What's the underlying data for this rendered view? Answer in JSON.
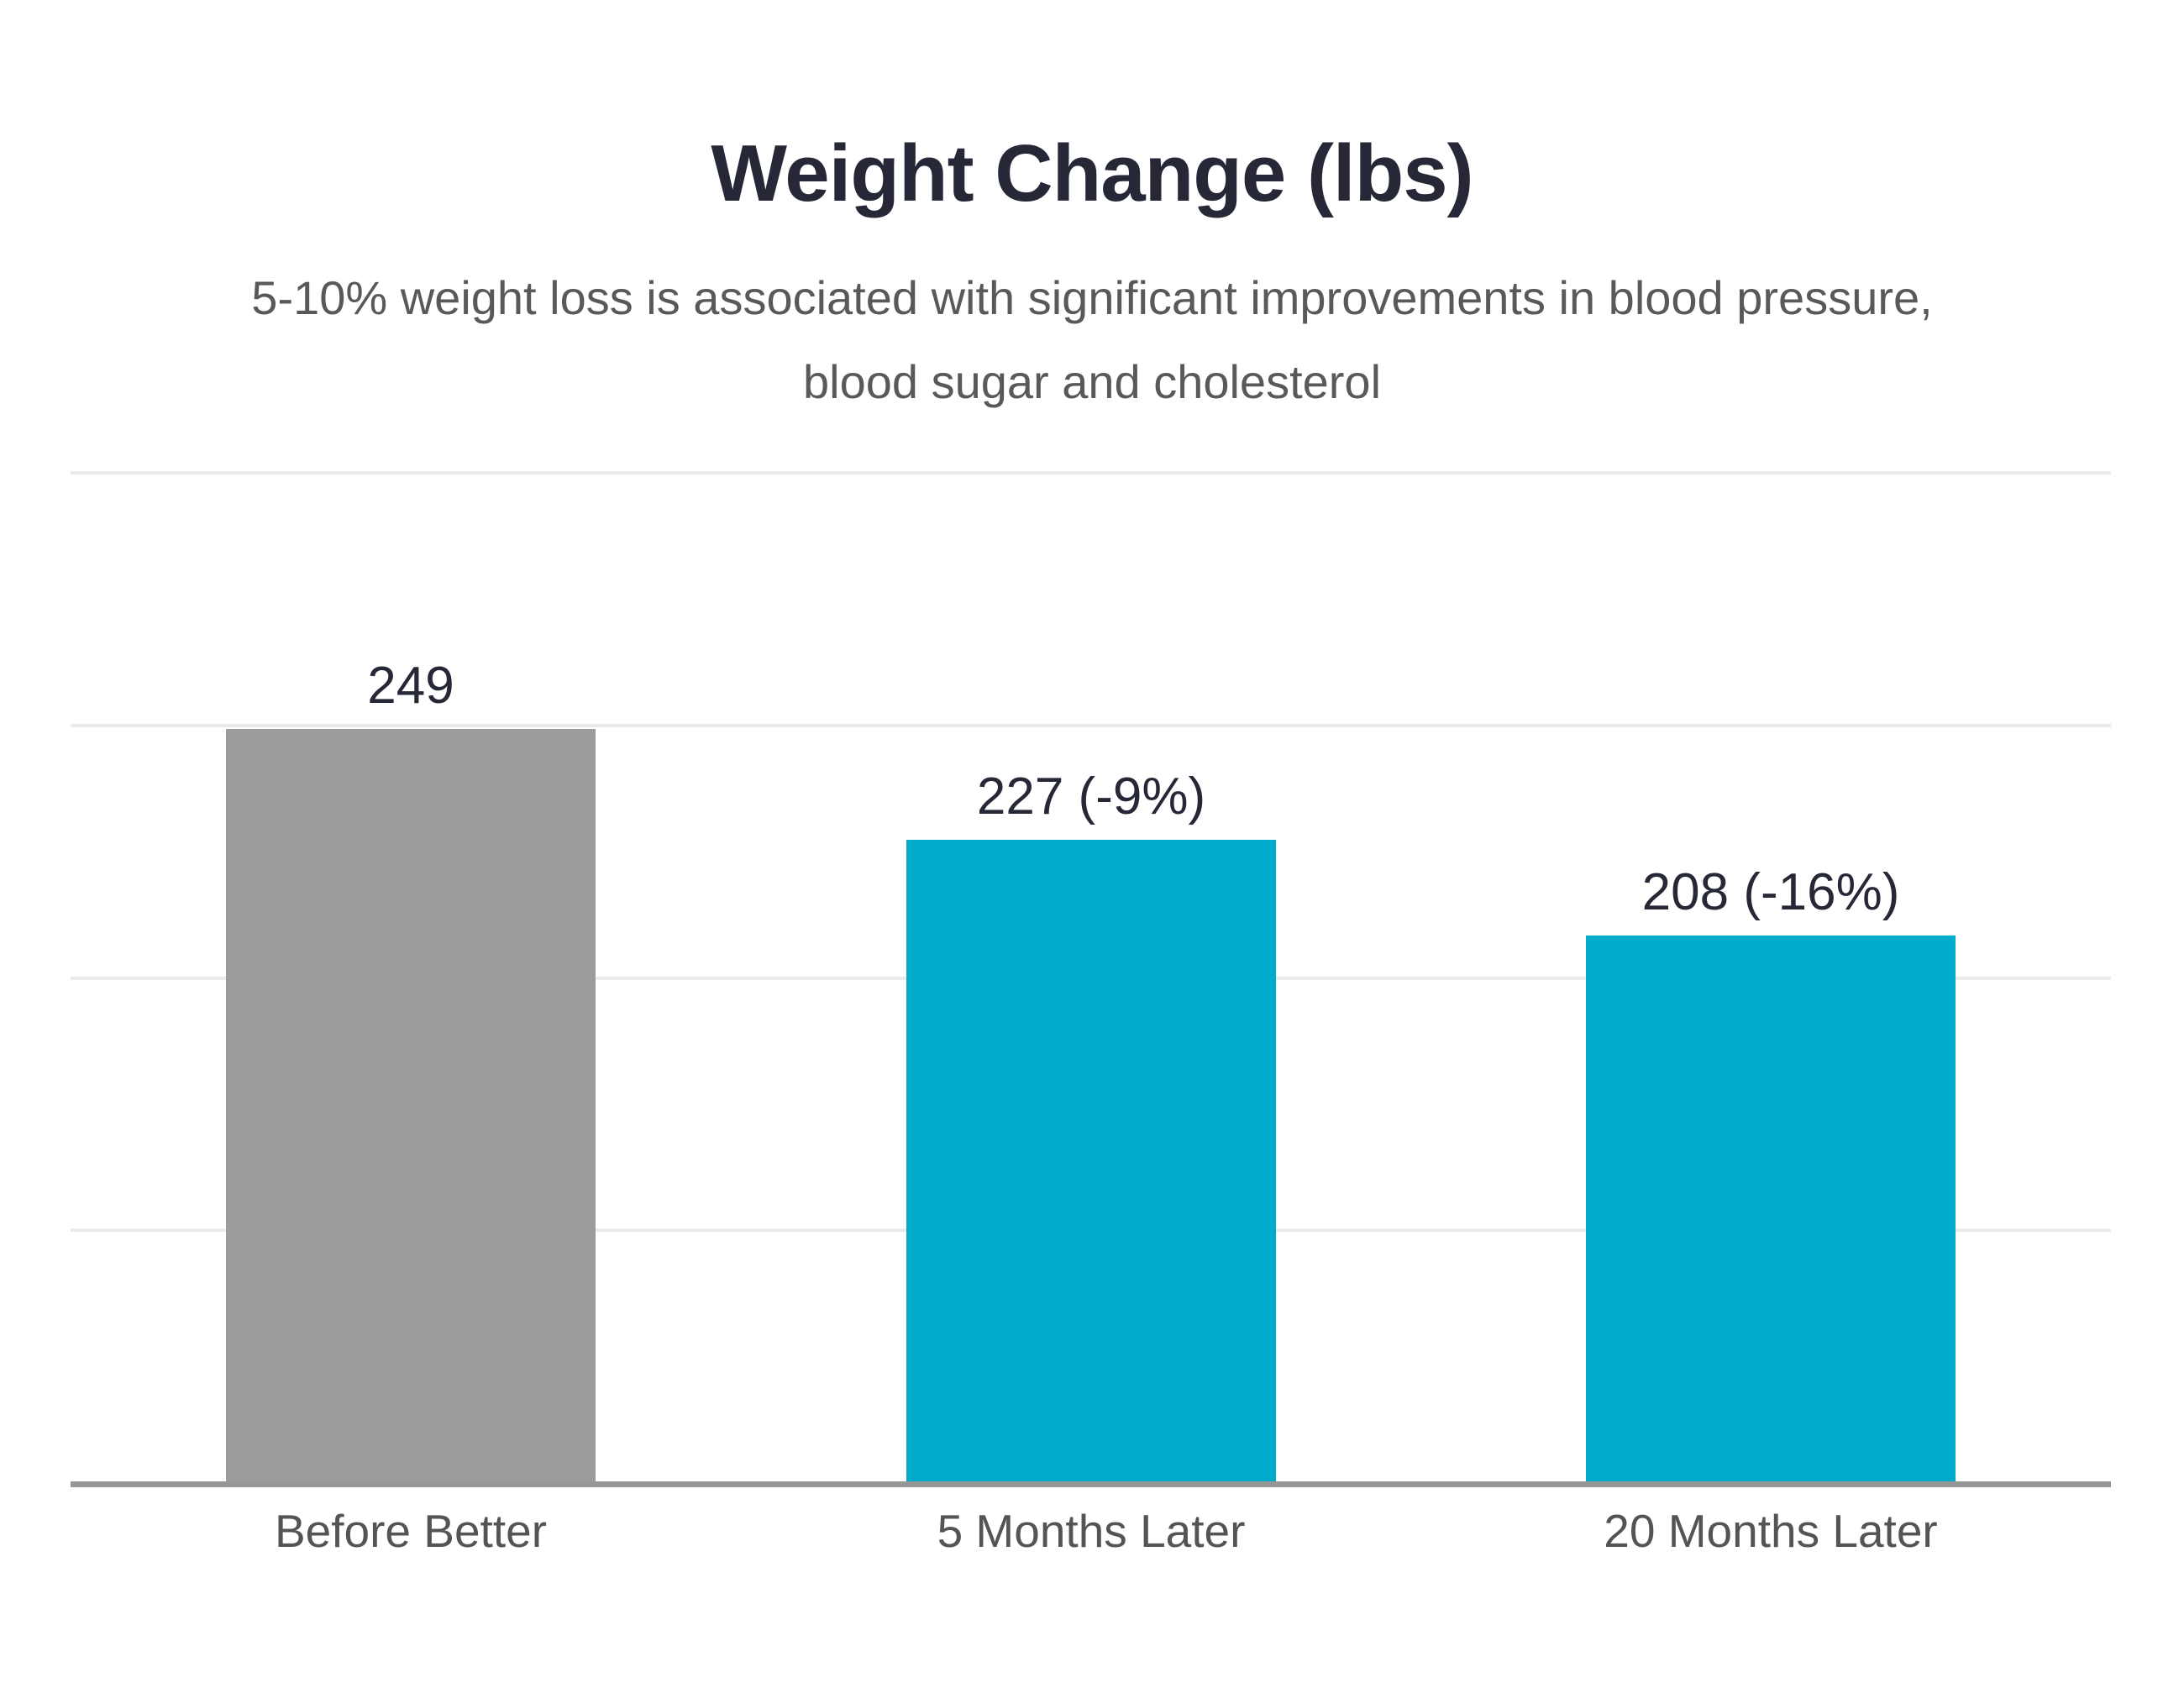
{
  "page": {
    "background": "#FFFFFF"
  },
  "header": {
    "title": "Weight Change (lbs)",
    "subtitle_lines": [
      "5-10% weight loss is associated with significant improvements in blood pressure,",
      "blood sugar and cholesterol"
    ]
  },
  "chart_data": {
    "type": "bar",
    "title": "Weight Change (lbs)",
    "subtitle": "5-10% weight loss is associated with significant improvements in blood pressure, blood sugar and cholesterol",
    "categories": [
      "Before Better",
      "5 Months Later",
      "20 Months Later"
    ],
    "values": [
      249,
      227,
      208
    ],
    "value_labels": [
      "249",
      "227 (-9%)",
      "208 (-16%)"
    ],
    "unit": "lbs",
    "ylim": [
      100,
      300
    ],
    "gridline_values": [
      150,
      200,
      250,
      300
    ],
    "grid": true,
    "legend_position": "none",
    "y_tick_labels_visible": false,
    "x_tick_labels_visible": true,
    "bar_colors": [
      "#9C9C9C",
      "#00ABCB",
      "#00ABCB"
    ]
  },
  "colors": {
    "background": "#FFFFFF",
    "title_text": "#262837",
    "subtitle_text": "#595959",
    "value_label_text": "#262837",
    "category_label_text": "#545454",
    "gridline": "#EAEAEA",
    "axis_line": "#979797",
    "bar_gray": "#9C9C9C",
    "bar_cyan": "#00ABCB"
  }
}
